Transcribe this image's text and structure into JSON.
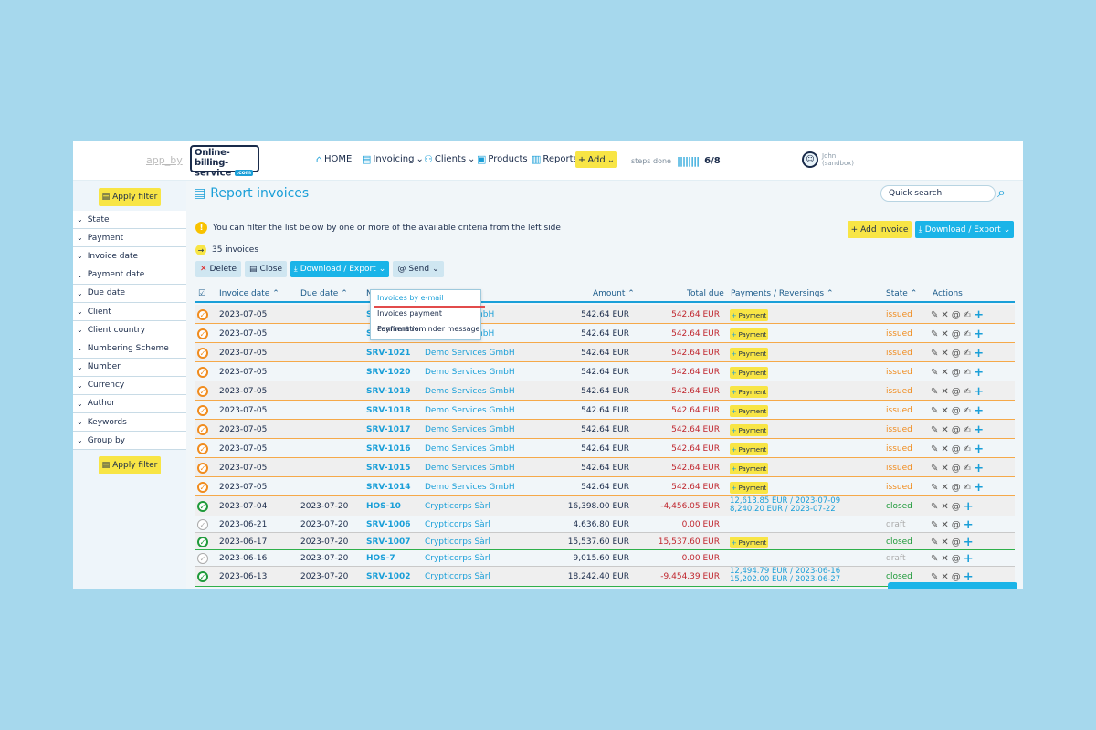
{
  "topbar": {
    "app_by": "app_by",
    "logo_line1": "Online-billing-",
    "logo_line2": "service",
    "logo_tag": ".com",
    "nav": {
      "home": "HOME",
      "invoicing": "Invoicing",
      "clients": "Clients",
      "products": "Products",
      "reports": "Reports"
    },
    "add_label": "Add",
    "steps_label": "steps done",
    "steps_bars": "||||||||",
    "steps_value": "6/8",
    "user_name": "John",
    "user_env": "(sandbox)"
  },
  "sidebar": {
    "apply_label": "Apply filter",
    "filters": [
      "State",
      "Payment",
      "Invoice date",
      "Payment date",
      "Due date",
      "Client",
      "Client country",
      "Numbering Scheme",
      "Number",
      "Currency",
      "Author",
      "Keywords",
      "Group by"
    ]
  },
  "main": {
    "title": "Report invoices",
    "search_placeholder": "Quick search",
    "info_text": "You can filter the list below by one or more of the available criteria from the left side",
    "count_text": "35 invoices",
    "add_invoice": "Add invoice",
    "download_export": "Download / Export",
    "toolbar": {
      "delete": "Delete",
      "close": "Close",
      "download": "Download / Export",
      "send": "Send"
    },
    "send_menu": [
      "Invoices by e-mail",
      "Invoices payment confirmation",
      "Payment reminder message"
    ],
    "columns": {
      "invoice_date": "Invoice date",
      "due_date": "Due date",
      "number": "N",
      "amount": "Amount",
      "total_due": "Total due",
      "payments": "Payments / Reversings",
      "state": "State",
      "actions": "Actions"
    },
    "payment_button": "Payment"
  },
  "rows": [
    {
      "date": "2023-07-05",
      "due": "",
      "num": "S",
      "client": "GmbH",
      "amount": "542.64 EUR",
      "total": "542.64 EUR",
      "pay": "button",
      "state": "issued"
    },
    {
      "date": "2023-07-05",
      "due": "",
      "num": "S",
      "client": "GmbH",
      "amount": "542.64 EUR",
      "total": "542.64 EUR",
      "pay": "button",
      "state": "issued"
    },
    {
      "date": "2023-07-05",
      "due": "",
      "num": "SRV-1021",
      "client": "Demo Services GmbH",
      "amount": "542.64 EUR",
      "total": "542.64 EUR",
      "pay": "button",
      "state": "issued"
    },
    {
      "date": "2023-07-05",
      "due": "",
      "num": "SRV-1020",
      "client": "Demo Services GmbH",
      "amount": "542.64 EUR",
      "total": "542.64 EUR",
      "pay": "button",
      "state": "issued"
    },
    {
      "date": "2023-07-05",
      "due": "",
      "num": "SRV-1019",
      "client": "Demo Services GmbH",
      "amount": "542.64 EUR",
      "total": "542.64 EUR",
      "pay": "button",
      "state": "issued"
    },
    {
      "date": "2023-07-05",
      "due": "",
      "num": "SRV-1018",
      "client": "Demo Services GmbH",
      "amount": "542.64 EUR",
      "total": "542.64 EUR",
      "pay": "button",
      "state": "issued"
    },
    {
      "date": "2023-07-05",
      "due": "",
      "num": "SRV-1017",
      "client": "Demo Services GmbH",
      "amount": "542.64 EUR",
      "total": "542.64 EUR",
      "pay": "button",
      "state": "issued"
    },
    {
      "date": "2023-07-05",
      "due": "",
      "num": "SRV-1016",
      "client": "Demo Services GmbH",
      "amount": "542.64 EUR",
      "total": "542.64 EUR",
      "pay": "button",
      "state": "issued"
    },
    {
      "date": "2023-07-05",
      "due": "",
      "num": "SRV-1015",
      "client": "Demo Services GmbH",
      "amount": "542.64 EUR",
      "total": "542.64 EUR",
      "pay": "button",
      "state": "issued"
    },
    {
      "date": "2023-07-05",
      "due": "",
      "num": "SRV-1014",
      "client": "Demo Services GmbH",
      "amount": "542.64 EUR",
      "total": "542.64 EUR",
      "pay": "button",
      "state": "issued"
    },
    {
      "date": "2023-07-04",
      "due": "2023-07-20",
      "num": "HOS-10",
      "client": "Crypticorps Sàrl",
      "amount": "16,398.00 EUR",
      "total": "-4,456.05 EUR",
      "pay": "12,613.85 EUR / 2023-07-09|8,240.20 EUR / 2023-07-22",
      "state": "closed"
    },
    {
      "date": "2023-06-21",
      "due": "2023-07-20",
      "num": "SRV-1006",
      "client": "Crypticorps Sàrl",
      "amount": "4,636.80 EUR",
      "total": "0.00 EUR",
      "pay": "",
      "state": "draft"
    },
    {
      "date": "2023-06-17",
      "due": "2023-07-20",
      "num": "SRV-1007",
      "client": "Crypticorps Sàrl",
      "amount": "15,537.60 EUR",
      "total": "15,537.60 EUR",
      "pay": "button",
      "state": "closed"
    },
    {
      "date": "2023-06-16",
      "due": "2023-07-20",
      "num": "HOS-7",
      "client": "Crypticorps Sàrl",
      "amount": "9,015.60 EUR",
      "total": "0.00 EUR",
      "pay": "",
      "state": "draft"
    },
    {
      "date": "2023-06-13",
      "due": "2023-07-20",
      "num": "SRV-1002",
      "client": "Crypticorps Sàrl",
      "amount": "18,242.40 EUR",
      "total": "-9,454.39 EUR",
      "pay": "12,494.79 EUR / 2023-06-16|15,202.00 EUR / 2023-06-27",
      "state": "closed"
    }
  ]
}
